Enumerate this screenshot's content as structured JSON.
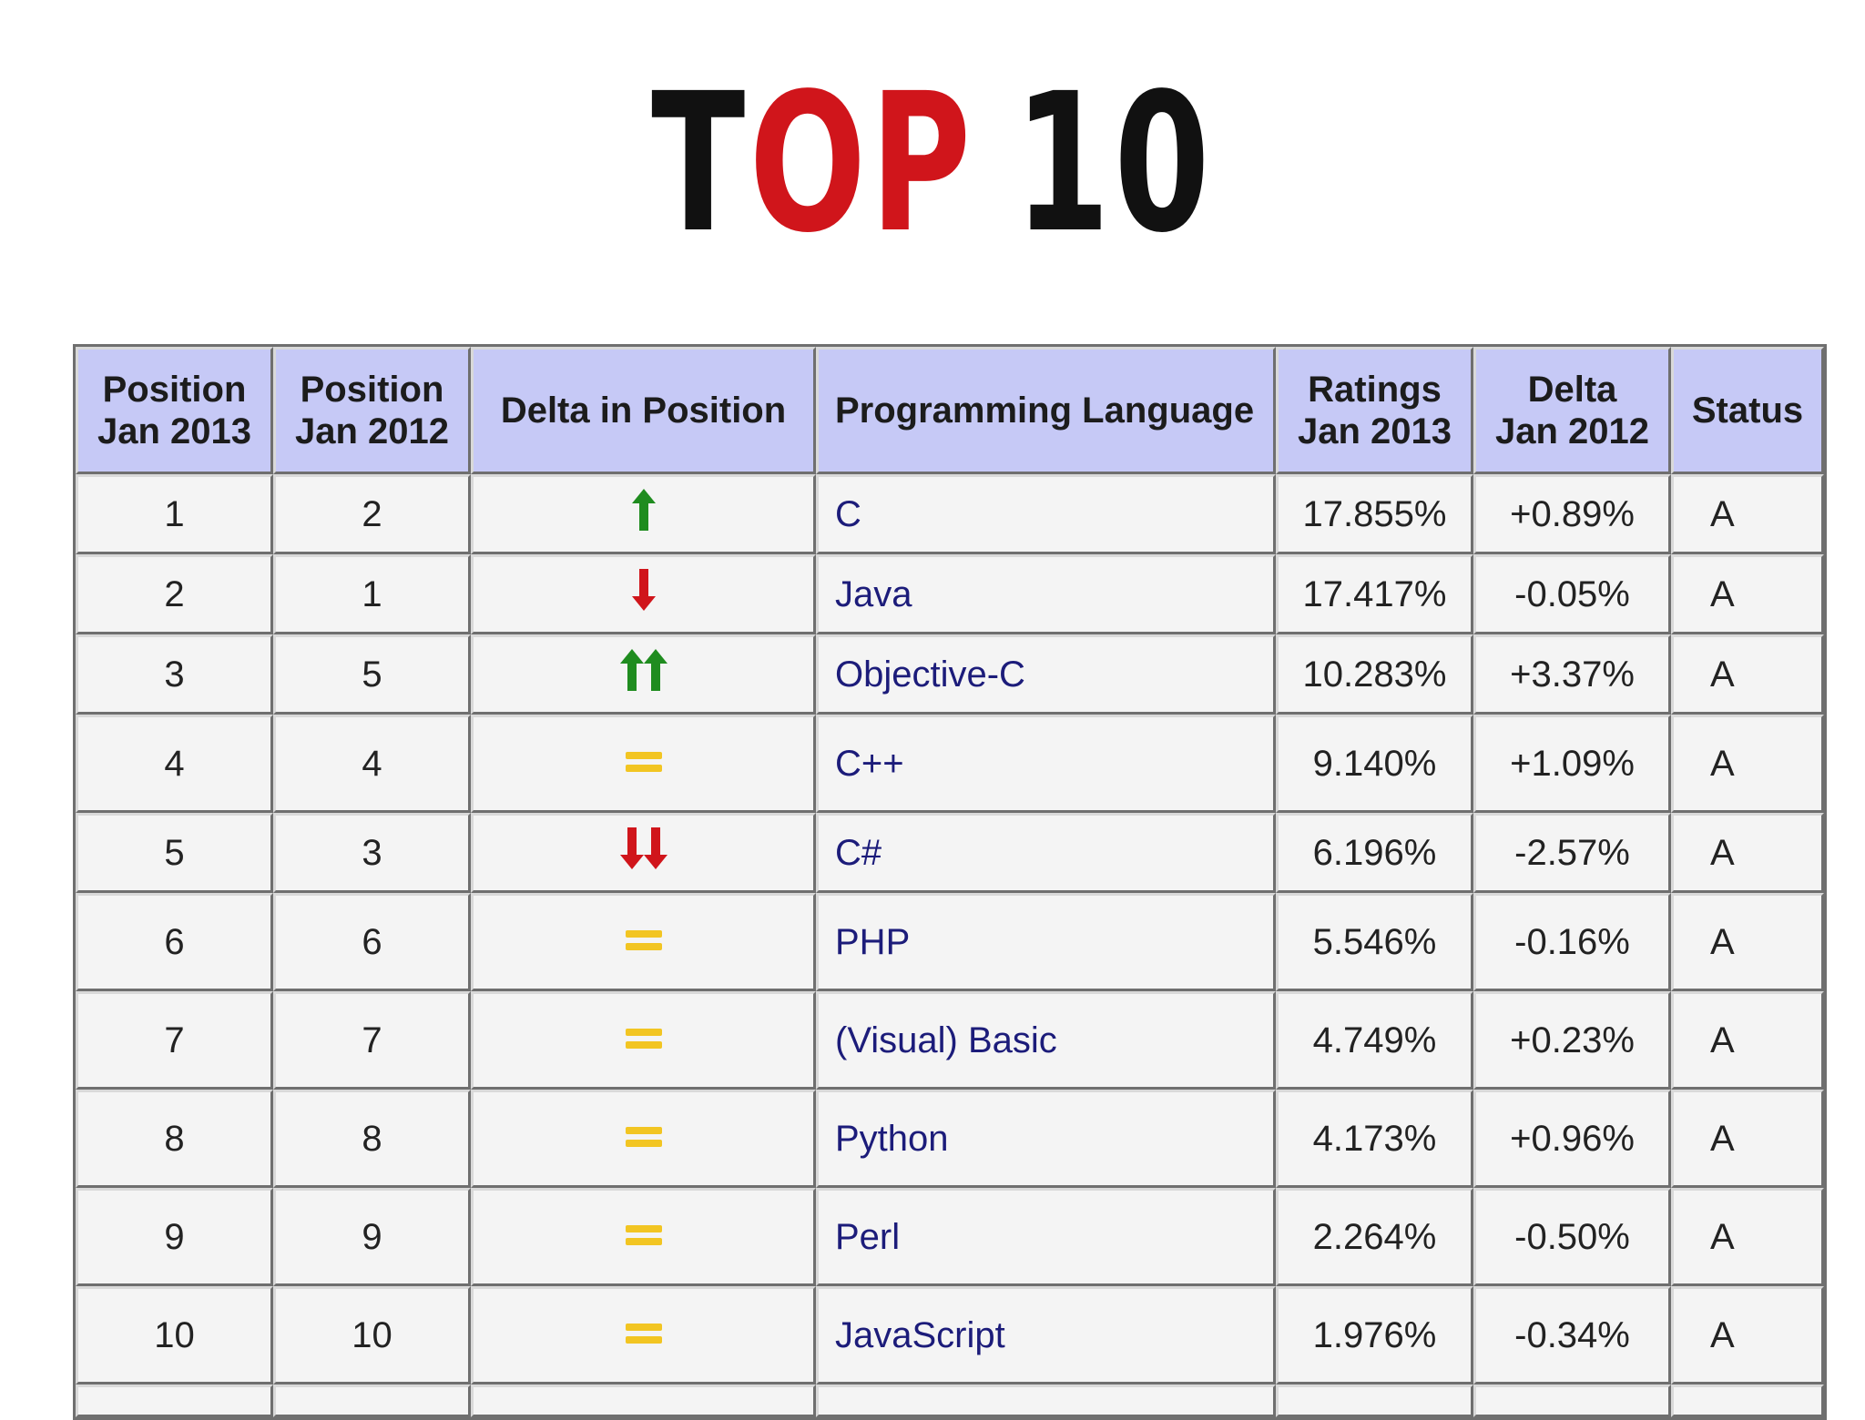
{
  "title": {
    "part1": "T",
    "part2": "OP",
    "part3": "10"
  },
  "colors": {
    "header_bg": "#c6c9f6",
    "up": "#1f8c1f",
    "down": "#d0151b",
    "same": "#f2c522",
    "link": "#1c1c7a"
  },
  "table": {
    "headers": {
      "pos2013_line1": "Position",
      "pos2013_line2": "Jan 2013",
      "pos2012_line1": "Position",
      "pos2012_line2": "Jan 2012",
      "delta_pos": "Delta in Position",
      "language": "Programming Language",
      "ratings_line1": "Ratings",
      "ratings_line2": "Jan 2013",
      "delta_line1": "Delta",
      "delta_line2": "Jan 2012",
      "status": "Status"
    },
    "rows": [
      {
        "pos2013": "1",
        "pos2012": "2",
        "trend": "up",
        "language": "C",
        "rating": "17.855%",
        "delta": "+0.89%",
        "status": "A"
      },
      {
        "pos2013": "2",
        "pos2012": "1",
        "trend": "down",
        "language": "Java",
        "rating": "17.417%",
        "delta": "-0.05%",
        "status": "A"
      },
      {
        "pos2013": "3",
        "pos2012": "5",
        "trend": "up-double",
        "language": "Objective-C",
        "rating": "10.283%",
        "delta": "+3.37%",
        "status": "A"
      },
      {
        "pos2013": "4",
        "pos2012": "4",
        "trend": "same",
        "language": "C++",
        "rating": "9.140%",
        "delta": "+1.09%",
        "status": "A"
      },
      {
        "pos2013": "5",
        "pos2012": "3",
        "trend": "down-double",
        "language": "C#",
        "rating": "6.196%",
        "delta": "-2.57%",
        "status": "A"
      },
      {
        "pos2013": "6",
        "pos2012": "6",
        "trend": "same",
        "language": "PHP",
        "rating": "5.546%",
        "delta": "-0.16%",
        "status": "A"
      },
      {
        "pos2013": "7",
        "pos2012": "7",
        "trend": "same",
        "language": "(Visual) Basic",
        "rating": "4.749%",
        "delta": "+0.23%",
        "status": "A"
      },
      {
        "pos2013": "8",
        "pos2012": "8",
        "trend": "same",
        "language": "Python",
        "rating": "4.173%",
        "delta": "+0.96%",
        "status": "A"
      },
      {
        "pos2013": "9",
        "pos2012": "9",
        "trend": "same",
        "language": "Perl",
        "rating": "2.264%",
        "delta": "-0.50%",
        "status": "A"
      },
      {
        "pos2013": "10",
        "pos2012": "10",
        "trend": "same",
        "language": "JavaScript",
        "rating": "1.976%",
        "delta": "-0.34%",
        "status": "A"
      }
    ]
  }
}
